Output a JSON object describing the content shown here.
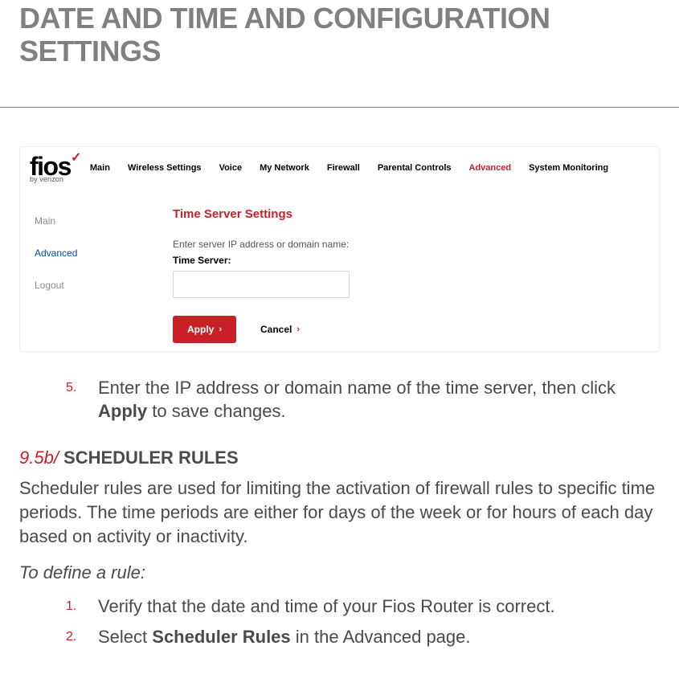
{
  "page": {
    "title": "DATE AND TIME AND CONFIGURATION SETTINGS"
  },
  "router": {
    "logo": {
      "word": "fios",
      "sub": "by verizon"
    },
    "topnav": [
      {
        "label": "Main",
        "active": false
      },
      {
        "label": "Wireless Settings",
        "active": false
      },
      {
        "label": "Voice",
        "active": false
      },
      {
        "label": "My Network",
        "active": false
      },
      {
        "label": "Firewall",
        "active": false
      },
      {
        "label": "Parental Controls",
        "active": false
      },
      {
        "label": "Advanced",
        "active": true
      },
      {
        "label": "System Monitoring",
        "active": false
      }
    ],
    "sidebar": [
      {
        "label": "Main",
        "active": false
      },
      {
        "label": "Advanced",
        "active": true
      },
      {
        "label": "Logout",
        "active": false
      }
    ],
    "panel": {
      "title": "Time Server Settings",
      "desc": "Enter server IP address or domain name:",
      "field_label": "Time Server:",
      "input_value": "",
      "apply": "Apply",
      "cancel": "Cancel"
    }
  },
  "doc": {
    "step5_num": "5.",
    "step5_a": "Enter the IP address or domain name of the time server, then click ",
    "step5_b": "Apply",
    "step5_c": " to save changes.",
    "sec_prefix": "9.5b/",
    "sec_name": " SCHEDULER RULES",
    "para1": "Scheduler rules are used for limiting the activation of firewall rules to specific time periods. The time periods are either for days of the week or for hours of each day based on activity or inactivity.",
    "para2": "To define a rule:",
    "s1_num": "1.",
    "s1": "Verify that the date and time of your Fios Router is correct.",
    "s2_num": "2.",
    "s2_a": "Select ",
    "s2_b": "Scheduler Rules",
    "s2_c": " in the Advanced page."
  },
  "colors": {
    "accent_red": "#c92028",
    "title_gray": "#808080",
    "body_gray": "#4a4a4a",
    "link_blue": "#0048a5"
  }
}
